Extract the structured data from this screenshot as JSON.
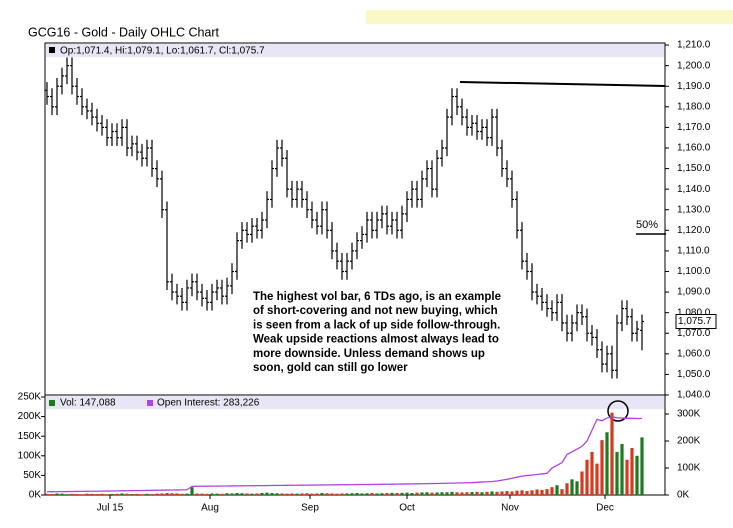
{
  "chart_data": {
    "type": "ohlc",
    "title": "GCG16 - Gold - Daily OHLC Chart",
    "ohlc_legend": "Op:1,071.4, Hi:1,079.1, Lo:1,061.7, Cl:1,075.7",
    "last_price_label": "1,075.7",
    "annotation_lines": [
      "The highest vol bar, 6 TDs ago, is an example",
      "of short-covering and not new buying, which",
      "is seen from a lack of up side follow-through.",
      "Weak upside reactions almost always lead to",
      "more downside.  Unless demand shows up",
      "soon, gold can still go lower"
    ],
    "fifty_label": "50%",
    "bar_color": "#000000",
    "open": [
      1188,
      1185,
      1180,
      1190,
      1195,
      1200,
      1190,
      1185,
      1180,
      1178,
      1175,
      1172,
      1170,
      1165,
      1168,
      1165,
      1170,
      1160,
      1162,
      1158,
      1155,
      1160,
      1150,
      1145,
      1130,
      1095,
      1090,
      1088,
      1085,
      1092,
      1095,
      1090,
      1087,
      1085,
      1090,
      1092,
      1088,
      1093,
      1100,
      1115,
      1120,
      1118,
      1122,
      1120,
      1125,
      1135,
      1150,
      1160,
      1155,
      1140,
      1135,
      1140,
      1135,
      1130,
      1125,
      1122,
      1130,
      1120,
      1110,
      1105,
      1100,
      1105,
      1110,
      1115,
      1118,
      1125,
      1120,
      1125,
      1128,
      1122,
      1125,
      1120,
      1128,
      1135,
      1140,
      1135,
      1145,
      1150,
      1140,
      1155,
      1160,
      1175,
      1185,
      1180,
      1175,
      1170,
      1172,
      1168,
      1170,
      1165,
      1175,
      1160,
      1150,
      1145,
      1135,
      1120,
      1105,
      1100,
      1090,
      1088,
      1085,
      1082,
      1080,
      1085,
      1075,
      1070,
      1075,
      1080,
      1078,
      1070,
      1068,
      1062,
      1055,
      1060,
      1052,
      1075,
      1082,
      1078,
      1070,
      1071.4
    ],
    "high": [
      1192,
      1189,
      1194,
      1199,
      1204,
      1204,
      1194,
      1189,
      1184,
      1182,
      1179,
      1176,
      1174,
      1172,
      1172,
      1174,
      1174,
      1166,
      1166,
      1162,
      1164,
      1164,
      1154,
      1149,
      1134,
      1099,
      1094,
      1092,
      1096,
      1099,
      1099,
      1094,
      1091,
      1094,
      1096,
      1096,
      1097,
      1104,
      1119,
      1124,
      1124,
      1126,
      1126,
      1129,
      1139,
      1154,
      1164,
      1164,
      1159,
      1144,
      1144,
      1144,
      1139,
      1134,
      1129,
      1134,
      1134,
      1124,
      1114,
      1109,
      1109,
      1114,
      1119,
      1122,
      1129,
      1129,
      1129,
      1132,
      1132,
      1129,
      1129,
      1132,
      1139,
      1144,
      1144,
      1149,
      1154,
      1154,
      1159,
      1164,
      1179,
      1189,
      1189,
      1184,
      1179,
      1176,
      1176,
      1174,
      1174,
      1179,
      1179,
      1164,
      1154,
      1149,
      1139,
      1124,
      1109,
      1104,
      1094,
      1092,
      1089,
      1086,
      1089,
      1089,
      1079,
      1079,
      1084,
      1084,
      1082,
      1074,
      1072,
      1066,
      1064,
      1064,
      1079,
      1086,
      1086,
      1082,
      1076,
      1079.1
    ],
    "low": [
      1181,
      1176,
      1176,
      1186,
      1191,
      1186,
      1181,
      1176,
      1174,
      1171,
      1168,
      1166,
      1161,
      1161,
      1161,
      1161,
      1156,
      1156,
      1154,
      1151,
      1151,
      1146,
      1141,
      1126,
      1091,
      1086,
      1084,
      1081,
      1081,
      1088,
      1086,
      1083,
      1081,
      1081,
      1086,
      1084,
      1084,
      1089,
      1096,
      1111,
      1114,
      1114,
      1116,
      1116,
      1121,
      1131,
      1146,
      1151,
      1136,
      1131,
      1131,
      1131,
      1126,
      1121,
      1118,
      1118,
      1116,
      1106,
      1101,
      1096,
      1096,
      1101,
      1106,
      1111,
      1114,
      1116,
      1116,
      1121,
      1118,
      1118,
      1116,
      1116,
      1124,
      1131,
      1131,
      1131,
      1141,
      1136,
      1136,
      1151,
      1156,
      1171,
      1176,
      1171,
      1166,
      1166,
      1164,
      1164,
      1161,
      1161,
      1156,
      1146,
      1141,
      1131,
      1116,
      1101,
      1096,
      1086,
      1084,
      1081,
      1078,
      1076,
      1076,
      1071,
      1066,
      1066,
      1071,
      1074,
      1066,
      1064,
      1058,
      1051,
      1051,
      1048,
      1048,
      1071,
      1074,
      1066,
      1066,
      1061.7
    ],
    "close": [
      1185,
      1180,
      1190,
      1195,
      1200,
      1190,
      1185,
      1180,
      1178,
      1175,
      1172,
      1170,
      1165,
      1168,
      1165,
      1170,
      1160,
      1162,
      1158,
      1155,
      1160,
      1150,
      1145,
      1130,
      1095,
      1090,
      1088,
      1085,
      1092,
      1095,
      1090,
      1087,
      1085,
      1090,
      1092,
      1088,
      1093,
      1100,
      1115,
      1120,
      1118,
      1122,
      1120,
      1125,
      1135,
      1150,
      1160,
      1155,
      1140,
      1135,
      1140,
      1135,
      1130,
      1125,
      1122,
      1130,
      1120,
      1110,
      1105,
      1100,
      1105,
      1110,
      1115,
      1118,
      1125,
      1120,
      1125,
      1128,
      1122,
      1125,
      1120,
      1128,
      1135,
      1140,
      1135,
      1145,
      1150,
      1140,
      1155,
      1160,
      1175,
      1185,
      1180,
      1175,
      1170,
      1172,
      1168,
      1170,
      1165,
      1175,
      1160,
      1150,
      1145,
      1135,
      1120,
      1105,
      1100,
      1090,
      1088,
      1085,
      1082,
      1080,
      1085,
      1075,
      1070,
      1075,
      1080,
      1078,
      1070,
      1068,
      1062,
      1055,
      1060,
      1052,
      1075,
      1082,
      1078,
      1070,
      1072,
      1075.7
    ],
    "volume": {
      "name": "Vol: 147,088",
      "up_color": "#1f7a1f",
      "down_color": "#d63a1e",
      "values": [
        3000,
        2500,
        4000,
        3500,
        2000,
        3000,
        2500,
        2000,
        3500,
        3000,
        2500,
        3000,
        2000,
        2500,
        3000,
        4000,
        3500,
        2500,
        3000,
        2000,
        3000,
        2500,
        3500,
        4000,
        5000,
        4500,
        4000,
        3000,
        3500,
        20000,
        4000,
        3500,
        3000,
        4000,
        3500,
        3000,
        4500,
        4000,
        5000,
        4500,
        4000,
        3500,
        4000,
        5000,
        6000,
        5000,
        4500,
        4000,
        3500,
        4000,
        3500,
        4000,
        4500,
        3500,
        4000,
        5000,
        4500,
        4000,
        3500,
        4000,
        4000,
        4500,
        5000,
        4000,
        4500,
        5000,
        4000,
        4500,
        5000,
        5500,
        5000,
        5500,
        6000,
        5000,
        6000,
        6500,
        7000,
        6000,
        6500,
        7000,
        7000,
        8000,
        7000,
        6500,
        7000,
        7500,
        8000,
        7000,
        8000,
        9000,
        8000,
        9000,
        10000,
        9000,
        11000,
        12000,
        10000,
        12000,
        14000,
        13000,
        15000,
        20000,
        25000,
        15000,
        30000,
        40000,
        35000,
        60000,
        90000,
        110000,
        80000,
        140000,
        160000,
        210000,
        110000,
        130000,
        90000,
        120000,
        100000,
        147088
      ]
    },
    "open_interest": {
      "name": "Open Interest: 283,226",
      "color": "#b044e0",
      "axis": "y2",
      "values": [
        12000,
        12200,
        12400,
        12600,
        12800,
        13000,
        13200,
        13400,
        13600,
        13800,
        14000,
        14300,
        14600,
        14900,
        15200,
        15500,
        15800,
        16100,
        16400,
        16700,
        17000,
        17300,
        17600,
        17900,
        18200,
        18500,
        18800,
        19100,
        19500,
        32000,
        32200,
        32400,
        32600,
        32800,
        33000,
        33200,
        33400,
        33600,
        33800,
        34000,
        34200,
        34400,
        34600,
        34800,
        35000,
        35200,
        35400,
        35600,
        35800,
        36000,
        36200,
        36400,
        36600,
        36800,
        37000,
        37200,
        37400,
        37600,
        37800,
        38000,
        38200,
        38400,
        38600,
        38800,
        39000,
        39200,
        39400,
        39600,
        39800,
        40000,
        40300,
        40600,
        40900,
        41200,
        41500,
        41800,
        42100,
        42400,
        42700,
        43000,
        43500,
        44000,
        44500,
        45000,
        45500,
        46000,
        47000,
        48000,
        49000,
        50000,
        52000,
        55000,
        58000,
        62000,
        66000,
        70000,
        72000,
        74000,
        76000,
        78000,
        80000,
        100000,
        110000,
        120000,
        150000,
        160000,
        170000,
        180000,
        200000,
        240000,
        280000,
        275000,
        285000,
        290000,
        286000,
        285000,
        284000,
        284000,
        283500,
        283226
      ]
    },
    "xlim": [
      -0.4,
      123.6
    ],
    "xticks": [
      {
        "value": 12.6,
        "label": "Jul 15"
      },
      {
        "value": 32.6,
        "label": "Aug"
      },
      {
        "value": 52.6,
        "label": "Sep"
      },
      {
        "value": 72,
        "label": "Oct"
      },
      {
        "value": 92.6,
        "label": "Nov"
      },
      {
        "value": 111.6,
        "label": "Dec"
      }
    ],
    "ylim": [
      1040,
      1211
    ],
    "yticks": [
      {
        "value": 1040,
        "label": "1,040.0"
      },
      {
        "value": 1050,
        "label": "1,050.0"
      },
      {
        "value": 1060,
        "label": "1,060.0"
      },
      {
        "value": 1070,
        "label": "1,070.0"
      },
      {
        "value": 1080,
        "label": "1,080.0"
      },
      {
        "value": 1090,
        "label": "1,090.0"
      },
      {
        "value": 1100,
        "label": "1,100.0"
      },
      {
        "value": 1110,
        "label": "1,110.0"
      },
      {
        "value": 1120,
        "label": "1,120.0"
      },
      {
        "value": 1130,
        "label": "1,130.0"
      },
      {
        "value": 1140,
        "label": "1,140.0"
      },
      {
        "value": 1150,
        "label": "1,150.0"
      },
      {
        "value": 1160,
        "label": "1,160.0"
      },
      {
        "value": 1170,
        "label": "1,170.0"
      },
      {
        "value": 1180,
        "label": "1,180.0"
      },
      {
        "value": 1190,
        "label": "1,190.0"
      },
      {
        "value": 1200,
        "label": "1,200.0"
      },
      {
        "value": 1210,
        "label": "1,210.0"
      }
    ],
    "vol_ylim": [
      0,
      250000
    ],
    "vol_yticks": [
      {
        "value": 0,
        "label": "0K"
      },
      {
        "value": 50000,
        "label": "50K"
      },
      {
        "value": 100000,
        "label": "100K"
      },
      {
        "value": 150000,
        "label": "150K"
      },
      {
        "value": 200000,
        "label": "200K"
      },
      {
        "value": 250000,
        "label": "250K"
      }
    ],
    "y2lim": [
      0,
      363000
    ],
    "y2ticks": [
      {
        "value": 0,
        "label": "0K"
      },
      {
        "value": 100000,
        "label": "100K"
      },
      {
        "value": 200000,
        "label": "200K"
      },
      {
        "value": 300000,
        "label": "300K"
      }
    ]
  }
}
